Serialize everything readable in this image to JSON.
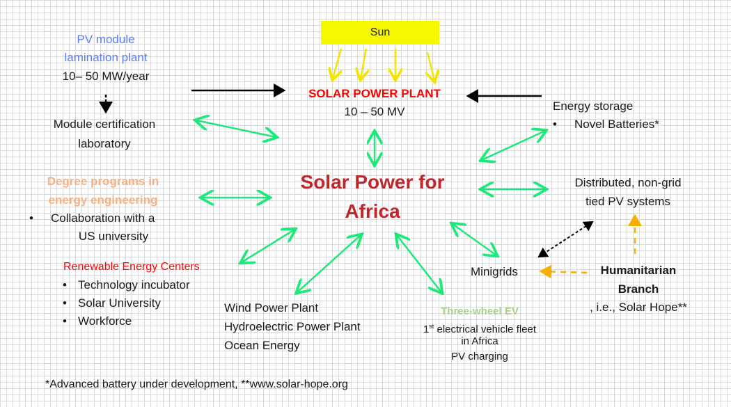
{
  "sun": "Sun",
  "solar_plant": {
    "title": "SOLAR POWER PLANT",
    "capacity": "10 – 50 MV"
  },
  "center": {
    "line1": "Solar Power for",
    "line2": "Africa"
  },
  "pv_module": {
    "line1": "PV module",
    "line2": "lamination plant",
    "capacity": "10– 50 MW/year"
  },
  "certification": {
    "line1": "Module certification",
    "line2": "laboratory"
  },
  "degree": {
    "line1": "Degree programs in",
    "line2": "energy engineering",
    "bullet1": "Collaboration with a",
    "bullet1b": "US university"
  },
  "rec": {
    "title": "Renewable Energy Centers",
    "items": [
      "Technology incubator",
      "Solar University",
      "Workforce"
    ]
  },
  "wind": {
    "lines": [
      "Wind Power Plant",
      "Hydroelectric Power Plant",
      "Ocean Energy"
    ]
  },
  "ev": {
    "title": "Three-wheel EV",
    "num": "1",
    "sup": "st",
    "line1": " electrical vehicle fleet",
    "line2": "in Africa",
    "line3": "PV charging"
  },
  "minigrids": "Minigrids",
  "humanitarian": {
    "line1": "Humanitarian",
    "line2": "Branch",
    "line3": ", i.e., Solar Hope**"
  },
  "storage": {
    "title": "Energy storage",
    "bullet": "Novel Batteries*"
  },
  "distributed": {
    "line1": "Distributed, non-grid",
    "line2": "tied PV systems"
  },
  "footnote": "*Advanced battery under development, **www.solar-hope.org",
  "colors": {
    "sun": "#f7f700",
    "green_arrow": "#1ee87a",
    "orange_arrow": "#f5b000",
    "red": "#ff0000",
    "center": "#c0272d",
    "blue": "#5b7cf5",
    "orange_text": "#f4b183",
    "light_green": "#a9d18e"
  }
}
